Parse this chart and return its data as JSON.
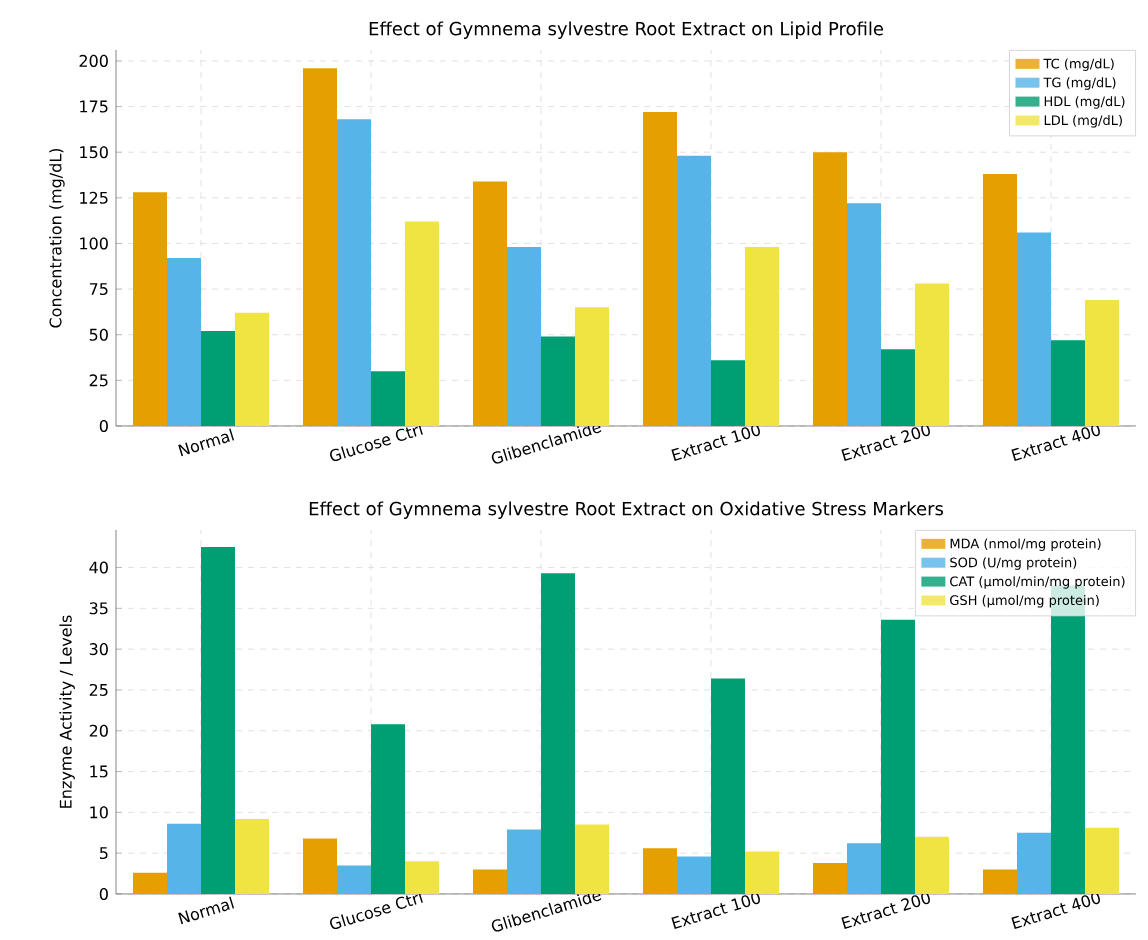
{
  "chart_data": [
    {
      "type": "bar",
      "title": "Effect of Gymnema sylvestre Root Extract on Lipid Profile",
      "ylabel": "Concentration (mg/dL)",
      "categories": [
        "Normal",
        "Glucose Ctrl",
        "Glibenclamide",
        "Extract 100",
        "Extract 200",
        "Extract 400"
      ],
      "series": [
        {
          "name": "TC (mg/dL)",
          "color": "#e69f00",
          "values": [
            128,
            196,
            134,
            172,
            150,
            138
          ]
        },
        {
          "name": "TG (mg/dL)",
          "color": "#56b4e9",
          "values": [
            92,
            168,
            98,
            148,
            122,
            106
          ]
        },
        {
          "name": "HDL (mg/dL)",
          "color": "#009e73",
          "values": [
            52,
            30,
            49,
            36,
            42,
            47
          ]
        },
        {
          "name": "LDL (mg/dL)",
          "color": "#f0e442",
          "values": [
            62,
            112,
            65,
            98,
            78,
            69
          ]
        }
      ],
      "ylim": [
        0,
        206
      ],
      "yticks": [
        0,
        25,
        50,
        75,
        100,
        125,
        150,
        175,
        200
      ],
      "grid": true,
      "legend": "top right"
    },
    {
      "type": "bar",
      "title": "Effect of Gymnema sylvestre Root Extract on Oxidative Stress Markers",
      "ylabel": "Enzyme Activity / Levels",
      "categories": [
        "Normal",
        "Glucose Ctrl",
        "Glibenclamide",
        "Extract 100",
        "Extract 200",
        "Extract 400"
      ],
      "series": [
        {
          "name": "MDA (nmol/mg protein)",
          "color": "#e69f00",
          "values": [
            2.6,
            6.8,
            3.0,
            5.6,
            3.8,
            3.0
          ]
        },
        {
          "name": "SOD (U/mg protein)",
          "color": "#56b4e9",
          "values": [
            8.6,
            3.5,
            7.9,
            4.6,
            6.2,
            7.5
          ]
        },
        {
          "name": "CAT (µmol/min/mg protein)",
          "color": "#009e73",
          "values": [
            42.5,
            20.8,
            39.3,
            26.4,
            33.6,
            37.8
          ]
        },
        {
          "name": "GSH (µmol/mg protein)",
          "color": "#f0e442",
          "values": [
            9.2,
            4.0,
            8.5,
            5.2,
            7.0,
            8.1
          ]
        }
      ],
      "ylim": [
        0,
        44.6
      ],
      "yticks": [
        0,
        5,
        10,
        15,
        20,
        25,
        30,
        35,
        40
      ],
      "grid": true,
      "legend": "top right"
    }
  ]
}
